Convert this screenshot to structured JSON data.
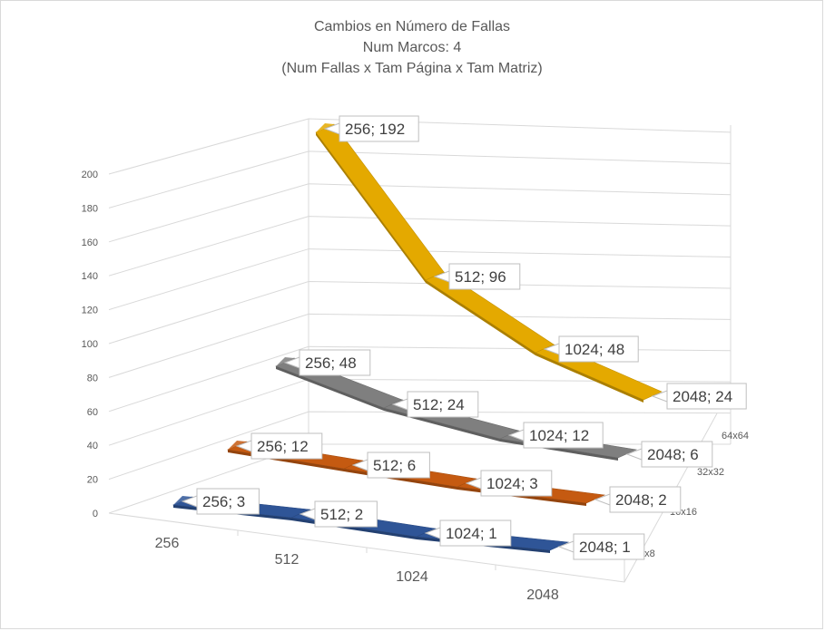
{
  "chart_data": {
    "type": "line",
    "title": "Cambios en Número de Fallas",
    "subtitle_lines": [
      "Num Marcos: 4",
      "(Num Fallas x Tam Página x Tam Matriz)"
    ],
    "categories": [
      "256",
      "512",
      "1024",
      "2048"
    ],
    "y_ticks": [
      "0",
      "20",
      "40",
      "60",
      "80",
      "100",
      "120",
      "140",
      "160",
      "180",
      "200"
    ],
    "ylim": [
      0,
      200
    ],
    "series": [
      {
        "name": "8x8",
        "color": "#2f5597",
        "values": [
          3,
          2,
          1,
          1
        ],
        "labels": [
          "256; 3",
          "512; 2",
          "1024; 1",
          "2048; 1"
        ]
      },
      {
        "name": "16x16",
        "color": "#c55a11",
        "values": [
          12,
          6,
          3,
          2
        ],
        "labels": [
          "256; 12",
          "512; 6",
          "1024; 3",
          "2048; 2"
        ]
      },
      {
        "name": "32x32",
        "color": "#7f7f7f",
        "values": [
          48,
          24,
          12,
          6
        ],
        "labels": [
          "256; 48",
          "512; 24",
          "1024; 12",
          "2048; 6"
        ]
      },
      {
        "name": "64x64",
        "color": "#e4a900",
        "values": [
          192,
          96,
          48,
          24
        ],
        "labels": [
          "256; 192",
          "512; 96",
          "1024; 48",
          "2048; 24"
        ]
      }
    ],
    "grid": true
  }
}
